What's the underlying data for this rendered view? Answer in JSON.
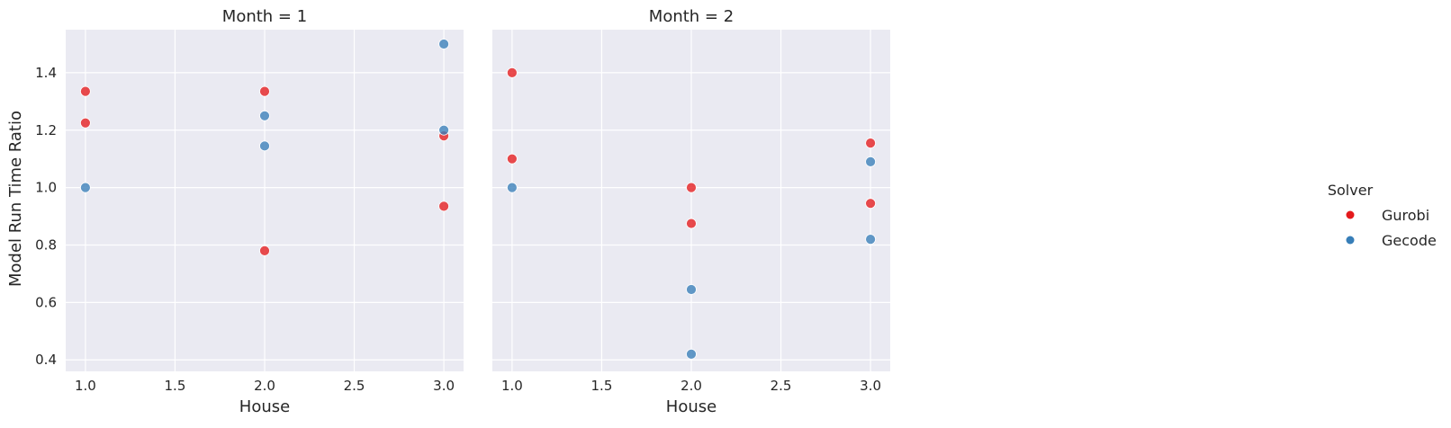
{
  "chart_data": {
    "type": "scatter",
    "facet_variable": "Month",
    "xlabel": "House",
    "ylabel": "Model Run Time Ratio",
    "xlim": [
      0.89,
      3.11
    ],
    "ylim": [
      0.36,
      1.55
    ],
    "xticks": [
      1.0,
      1.5,
      2.0,
      2.5,
      3.0
    ],
    "xtick_labels": [
      "1.0",
      "1.5",
      "2.0",
      "2.5",
      "3.0"
    ],
    "yticks": [
      0.4,
      0.6,
      0.8,
      1.0,
      1.2,
      1.4
    ],
    "ytick_labels": [
      "0.4",
      "0.6",
      "0.8",
      "1.0",
      "1.2",
      "1.4"
    ],
    "grid": true,
    "legend": {
      "title": "Solver",
      "placement": "right",
      "entries": [
        {
          "name": "Gurobi",
          "color": "#e41a1c"
        },
        {
          "name": "Gecode",
          "color": "#377eb8"
        }
      ]
    },
    "panels": [
      {
        "title": "Month = 1",
        "series": [
          {
            "name": "Gurobi",
            "color": "#e41a1c",
            "points": [
              [
                1.0,
                1.335
              ],
              [
                1.0,
                1.225
              ],
              [
                2.0,
                1.335
              ],
              [
                2.0,
                0.78
              ],
              [
                3.0,
                1.18
              ],
              [
                3.0,
                0.935
              ]
            ]
          },
          {
            "name": "Gecode",
            "color": "#377eb8",
            "points": [
              [
                1.0,
                1.0
              ],
              [
                2.0,
                1.25
              ],
              [
                2.0,
                1.145
              ],
              [
                3.0,
                1.5
              ],
              [
                3.0,
                1.2
              ]
            ]
          }
        ]
      },
      {
        "title": "Month = 2",
        "series": [
          {
            "name": "Gurobi",
            "color": "#e41a1c",
            "points": [
              [
                1.0,
                1.4
              ],
              [
                1.0,
                1.1
              ],
              [
                2.0,
                1.0
              ],
              [
                2.0,
                0.875
              ],
              [
                3.0,
                1.155
              ],
              [
                3.0,
                0.945
              ]
            ]
          },
          {
            "name": "Gecode",
            "color": "#377eb8",
            "points": [
              [
                1.0,
                1.0
              ],
              [
                2.0,
                0.645
              ],
              [
                2.0,
                0.42
              ],
              [
                3.0,
                1.09
              ],
              [
                3.0,
                0.82
              ]
            ]
          }
        ]
      }
    ]
  }
}
